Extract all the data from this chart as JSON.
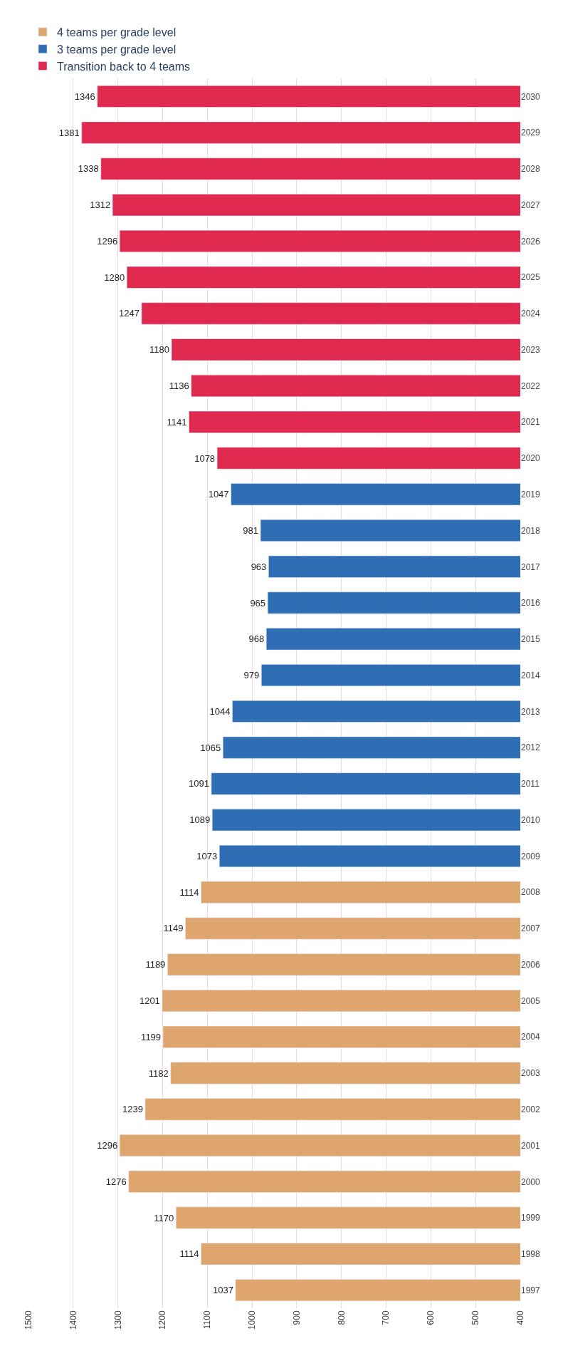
{
  "chart_data": {
    "type": "bar",
    "orientation": "horizontal",
    "categories": [
      "2030",
      "2029",
      "2028",
      "2027",
      "2026",
      "2025",
      "2024",
      "2023",
      "2022",
      "2021",
      "2020",
      "2019",
      "2018",
      "2017",
      "2016",
      "2015",
      "2014",
      "2013",
      "2012",
      "2011",
      "2010",
      "2009",
      "2008",
      "2007",
      "2006",
      "2005",
      "2004",
      "2003",
      "2002",
      "2001",
      "2000",
      "1999",
      "1998",
      "1997"
    ],
    "series": [
      {
        "name": "4 teams per grade level",
        "color": "#dfa56f",
        "values": [
          null,
          null,
          null,
          null,
          null,
          null,
          null,
          null,
          null,
          null,
          null,
          null,
          null,
          null,
          null,
          null,
          null,
          null,
          null,
          null,
          null,
          null,
          1114,
          1149,
          1189,
          1201,
          1199,
          1182,
          1239,
          1296,
          1276,
          1170,
          1114,
          1037
        ]
      },
      {
        "name": "3 teams per grade level",
        "color": "#2f6db5",
        "values": [
          null,
          null,
          null,
          null,
          null,
          null,
          null,
          null,
          null,
          null,
          null,
          1047,
          981,
          963,
          965,
          968,
          979,
          1044,
          1065,
          1091,
          1089,
          1073,
          null,
          null,
          null,
          null,
          null,
          null,
          null,
          null,
          null,
          null,
          null,
          null
        ]
      },
      {
        "name": "Transition back to 4 teams",
        "color": "#e0294f",
        "values": [
          1346,
          1381,
          1338,
          1312,
          1296,
          1280,
          1247,
          1180,
          1136,
          1141,
          1078,
          null,
          null,
          null,
          null,
          null,
          null,
          null,
          null,
          null,
          null,
          null,
          null,
          null,
          null,
          null,
          null,
          null,
          null,
          null,
          null,
          null,
          null,
          null
        ]
      }
    ],
    "xlim": [
      1500,
      400
    ],
    "xticks": [
      1500,
      1400,
      1300,
      1200,
      1100,
      1000,
      900,
      800,
      700,
      600,
      500,
      400
    ],
    "grid": "x",
    "legend": "top left",
    "data_labels": true
  }
}
